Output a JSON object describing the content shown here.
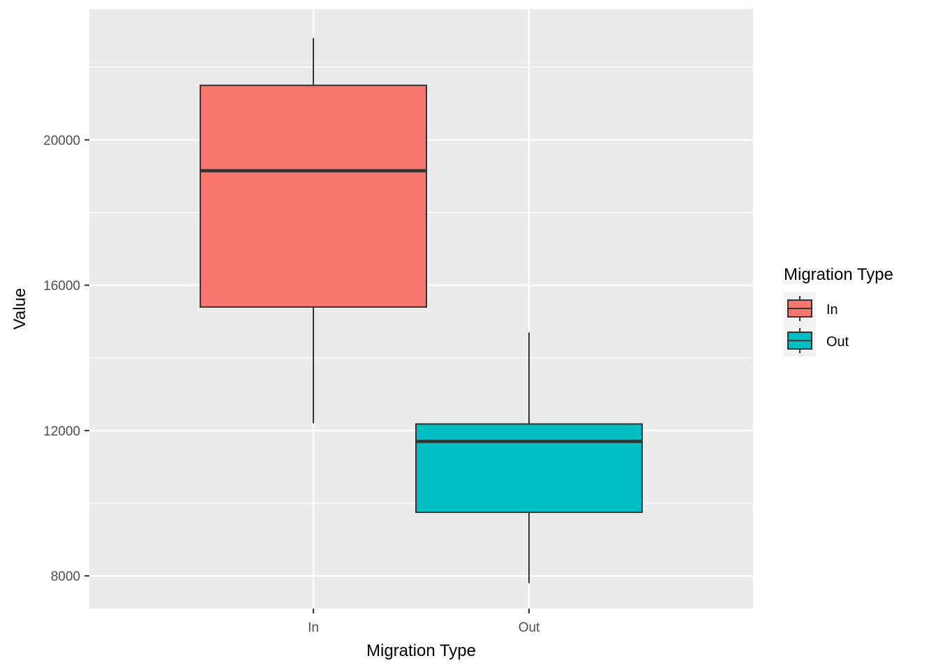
{
  "chart_data": {
    "type": "boxplot",
    "xlabel": "Migration Type",
    "ylabel": "Value",
    "categories": [
      "In",
      "Out"
    ],
    "boxes": [
      {
        "category": "In",
        "whisker_low": 12200,
        "q1": 15400,
        "median": 19150,
        "q3": 21500,
        "whisker_high": 22800,
        "fill": "#F8766D"
      },
      {
        "category": "Out",
        "whisker_low": 7800,
        "q1": 9750,
        "median": 11700,
        "q3": 12180,
        "whisker_high": 14700,
        "fill": "#00BFC4"
      }
    ],
    "ylim": [
      7100,
      23600
    ],
    "yticks": [
      8000,
      12000,
      16000,
      20000
    ],
    "ytick_labels": [
      "8000",
      "12000",
      "16000",
      "20000"
    ],
    "y_minor_gridlines": [
      10000,
      14000,
      18000,
      22000
    ],
    "grid": true,
    "panel_background": "#EBEBEB",
    "gridline_color": "#FFFFFF",
    "box_outline_color": "#333333",
    "legend": {
      "title": "Migration Type",
      "position": "right",
      "items": [
        {
          "label": "In",
          "color": "#F8766D"
        },
        {
          "label": "Out",
          "color": "#00BFC4"
        }
      ]
    }
  }
}
